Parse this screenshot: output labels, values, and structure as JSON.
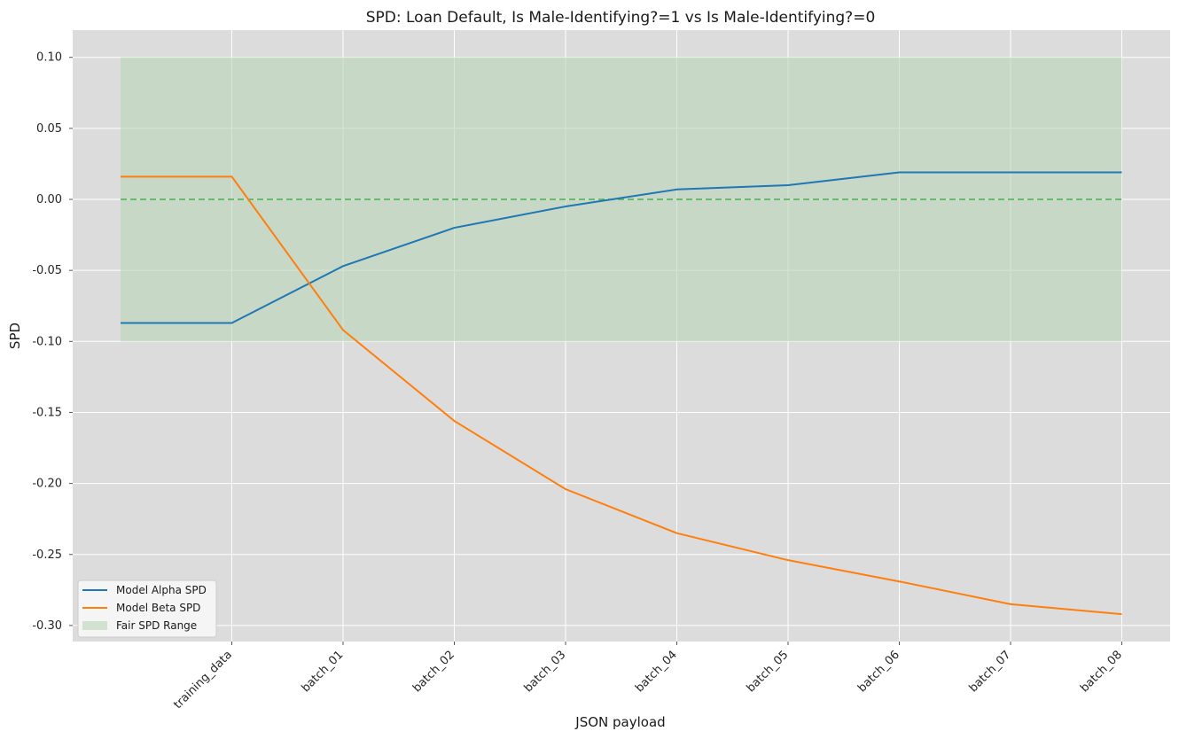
{
  "chart_data": {
    "type": "line",
    "title": "SPD: Loan Default, Is Male-Identifying?=1 vs Is Male-Identifying?=0",
    "xlabel": "JSON payload",
    "ylabel": "SPD",
    "categories": [
      "",
      "training_data",
      "batch_01",
      "batch_02",
      "batch_03",
      "batch_04",
      "batch_05",
      "batch_06",
      "batch_07",
      "batch_08"
    ],
    "series": [
      {
        "name": "Model Alpha SPD",
        "color": "#1f77b4",
        "values": [
          -0.087,
          -0.087,
          -0.047,
          -0.02,
          -0.005,
          0.007,
          0.01,
          0.019,
          0.019,
          0.019
        ]
      },
      {
        "name": "Model Beta SPD",
        "color": "#ff7f0e",
        "values": [
          0.016,
          0.016,
          -0.092,
          -0.156,
          -0.204,
          -0.235,
          -0.254,
          -0.269,
          -0.285,
          -0.292
        ]
      }
    ],
    "reference_line": {
      "y": 0.0,
      "color": "#4caf50",
      "style": "dashed"
    },
    "fair_range": {
      "name": "Fair SPD Range",
      "ymin": -0.1,
      "ymax": 0.1,
      "color": "#b9d6b9"
    },
    "ylim": [
      -0.31,
      0.12
    ],
    "yticks": [
      "0.10",
      "0.05",
      "0.00",
      "-0.05",
      "-0.10",
      "-0.15",
      "-0.20",
      "-0.25",
      "-0.30"
    ],
    "grid": true,
    "legend_position": "lower-left",
    "legend": [
      "Model Alpha SPD",
      "Model Beta SPD",
      "Fair SPD Range"
    ]
  }
}
